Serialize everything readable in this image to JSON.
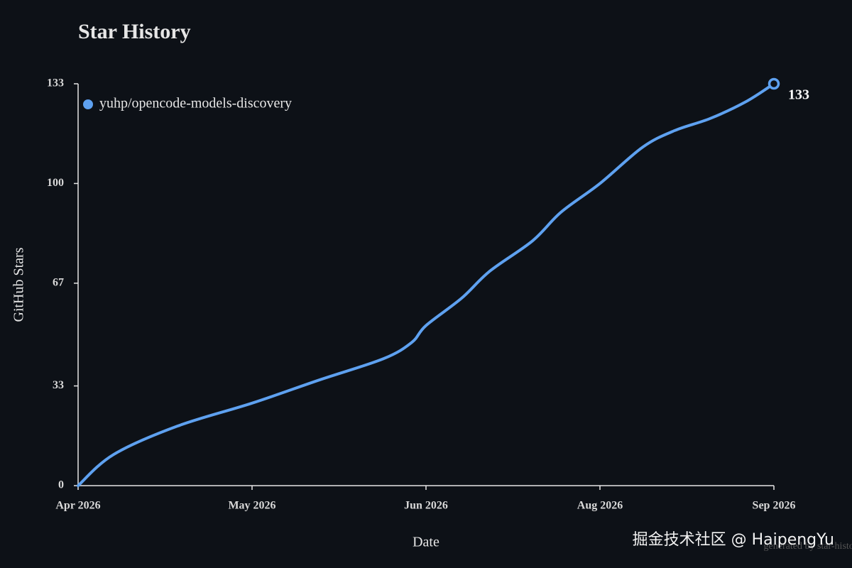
{
  "chart_data": {
    "type": "line",
    "title": "Star History",
    "xlabel": "Date",
    "ylabel": "GitHub Stars",
    "watermark": "掘金技术社区 @ HaipengYu",
    "footer": "generated by star-history",
    "x": [
      0,
      0.204,
      0.571,
      1.0,
      1.388,
      1.755,
      1.918,
      2.0,
      2.204,
      2.367,
      2.612,
      2.776,
      3.0,
      3.245,
      3.429,
      3.633,
      3.837,
      4.0
    ],
    "series": [
      {
        "name": "yuhp/opencode-models-discovery",
        "color": "#5ea1f0",
        "values": [
          0,
          10.3,
          19.7,
          27.3,
          35,
          42,
          47.4,
          53,
          62,
          71,
          81,
          90.5,
          100,
          112,
          117.5,
          121.5,
          127,
          133
        ]
      }
    ],
    "xlim": [
      0,
      4
    ],
    "xticks": [
      {
        "value": 0,
        "label": "Apr 2026"
      },
      {
        "value": 1,
        "label": "May 2026"
      },
      {
        "value": 2,
        "label": "Jun 2026"
      },
      {
        "value": 3,
        "label": "Aug 2026"
      },
      {
        "value": 4,
        "label": "Sep 2026"
      }
    ],
    "ylim": [
      0,
      133
    ],
    "yticks": [
      0,
      33,
      67,
      100,
      133
    ],
    "legend": "upper left"
  }
}
